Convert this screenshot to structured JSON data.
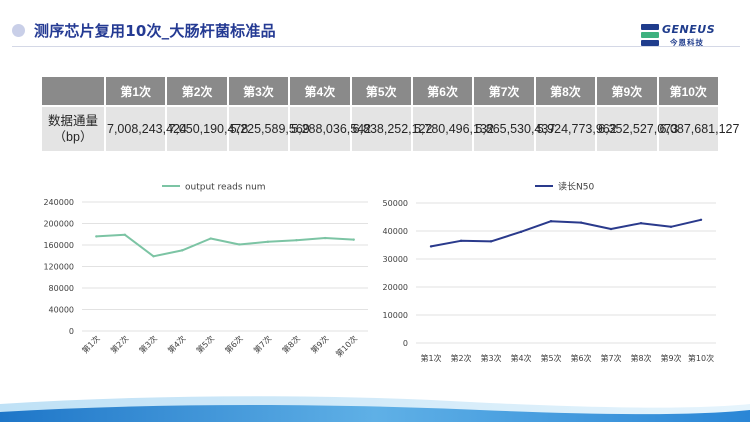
{
  "header": {
    "title": "测序芯片复用10次_大肠杆菌标准品",
    "logo_text": "GENEUS",
    "logo_sub": "今恩科技"
  },
  "table": {
    "row_header": "数据通量（bp）",
    "columns": [
      "第1次",
      "第2次",
      "第3次",
      "第4次",
      "第5次",
      "第6次",
      "第7次",
      "第8次",
      "第9次",
      "第10次"
    ],
    "values": [
      "7,008,243,424",
      "7,050,190,478",
      "5,225,589,569",
      "5,288,036,542",
      "6,838,252,122",
      "5,780,496,132",
      "5,865,530,437",
      "5,924,773,962",
      "6,352,527,073",
      "6,087,681,127"
    ]
  },
  "chart_data": [
    {
      "type": "line",
      "title": "",
      "legend": [
        "output reads  num"
      ],
      "legend_position": "top",
      "categories": [
        "第1次",
        "第2次",
        "第3次",
        "第4次",
        "第5次",
        "第6次",
        "第7次",
        "第8次",
        "第9次",
        "第10次"
      ],
      "series": [
        {
          "name": "output reads  num",
          "color": "#7cc4a4",
          "values": [
            176000,
            179000,
            139000,
            150000,
            172000,
            161000,
            166000,
            169000,
            173000,
            170000
          ]
        }
      ],
      "yticks": [
        0,
        40000,
        80000,
        120000,
        160000,
        200000,
        240000
      ],
      "ylim": [
        0,
        240000
      ],
      "xlabel": "",
      "ylabel": "",
      "xtick_rotation": -45
    },
    {
      "type": "line",
      "title": "",
      "legend": [
        "读长N50"
      ],
      "legend_position": "top",
      "categories": [
        "第1次",
        "第2次",
        "第3次",
        "第4次",
        "第5次",
        "第6次",
        "第7次",
        "第8次",
        "第9次",
        "第10次"
      ],
      "series": [
        {
          "name": "读长N50",
          "color": "#2a3a8c",
          "values": [
            34500,
            36500,
            36300,
            39700,
            43500,
            43000,
            40700,
            42800,
            41500,
            44000
          ]
        }
      ],
      "yticks": [
        0,
        10000,
        20000,
        30000,
        40000,
        50000
      ],
      "ylim": [
        0,
        50000
      ],
      "xlabel": "",
      "ylabel": "",
      "xtick_rotation": 0
    }
  ]
}
